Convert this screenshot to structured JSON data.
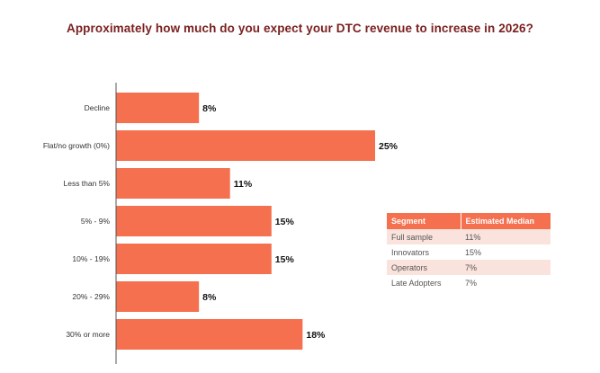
{
  "chart_data": {
    "type": "bar",
    "orientation": "horizontal",
    "title": "Approximately how much do you expect your DTC revenue to increase in 2026?",
    "categories": [
      "Decline",
      "Flat/no growth (0%)",
      "Less than 5%",
      "5% - 9%",
      "10% - 19%",
      "20% - 29%",
      "30% or more"
    ],
    "values": [
      8,
      25,
      11,
      15,
      15,
      8,
      18
    ],
    "value_labels": [
      "8%",
      "25%",
      "11%",
      "15%",
      "15%",
      "8%",
      "18%"
    ],
    "xlim": [
      0,
      25
    ],
    "grid": false,
    "bar_color": "#f4704f"
  },
  "segment_table": {
    "headers": [
      "Segment",
      "Estimated Median"
    ],
    "rows": [
      {
        "segment": "Full sample",
        "median": "11%"
      },
      {
        "segment": "Innovators",
        "median": "15%"
      },
      {
        "segment": "Operators",
        "median": "7%"
      },
      {
        "segment": "Late Adopters",
        "median": "7%"
      }
    ]
  },
  "colors": {
    "title": "#7a1f1f",
    "bar": "#f4704f",
    "table_header": "#f4704f",
    "table_shade": "#fbe3dd"
  }
}
